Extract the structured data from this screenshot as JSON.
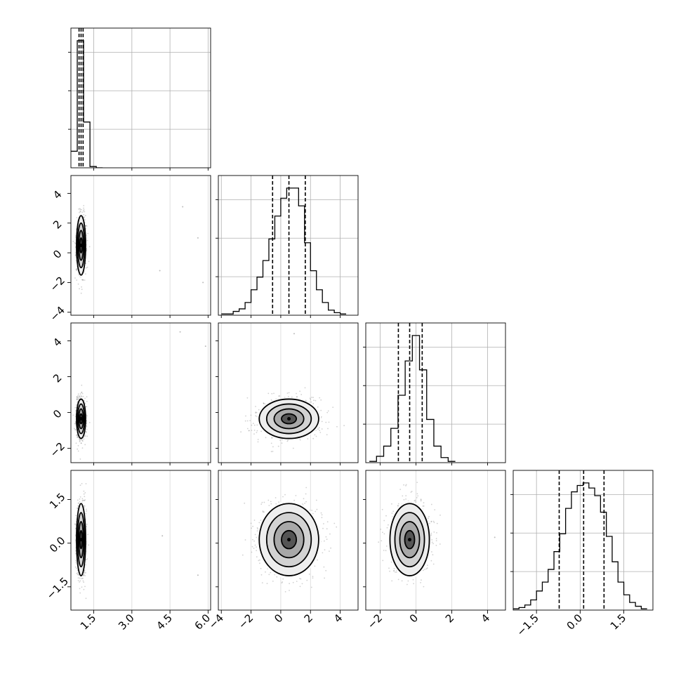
{
  "chart_data": {
    "type": "corner",
    "n_params": 4,
    "axes": [
      {
        "param": 0,
        "range": [
          0.6,
          6.1
        ],
        "ticks": [
          1.5,
          3.0,
          4.5,
          6.0
        ],
        "tick_labels": [
          "1.5",
          "3.0",
          "4.5",
          "6.0"
        ]
      },
      {
        "param": 1,
        "range": [
          -4.2,
          5.2
        ],
        "ticks": [
          -4,
          -2,
          0,
          2,
          4
        ],
        "tick_labels": [
          "−4",
          "−2",
          "0",
          "2",
          "4"
        ]
      },
      {
        "param": 2,
        "range": [
          -2.8,
          5.0
        ],
        "ticks": [
          -2,
          0,
          2,
          4
        ],
        "tick_labels": [
          "−2",
          "0",
          "2",
          "4"
        ]
      },
      {
        "param": 3,
        "range": [
          -2.3,
          2.5
        ],
        "ticks": [
          -1.5,
          0.0,
          1.5
        ],
        "tick_labels": [
          "−1.5",
          "0.0",
          "1.5"
        ]
      }
    ],
    "histograms": [
      {
        "param": 0,
        "bin_edges": [
          0.6,
          0.85,
          1.1,
          1.35,
          1.6,
          1.85
        ],
        "counts": [
          0.13,
          1.0,
          0.36,
          0.01,
          0.0
        ],
        "quantiles": [
          0.92,
          1.0,
          1.08
        ]
      },
      {
        "param": 1,
        "bin_edges": [
          -4.0,
          -3.6,
          -3.2,
          -2.8,
          -2.4,
          -2.0,
          -1.6,
          -1.2,
          -0.8,
          -0.4,
          0.0,
          0.4,
          0.8,
          1.2,
          1.6,
          2.0,
          2.4,
          2.8,
          3.2,
          3.6,
          4.0,
          4.4
        ],
        "counts": [
          0.01,
          0.01,
          0.03,
          0.05,
          0.1,
          0.2,
          0.3,
          0.43,
          0.6,
          0.78,
          0.92,
          1.0,
          1.0,
          0.86,
          0.57,
          0.35,
          0.2,
          0.1,
          0.04,
          0.02,
          0.01
        ],
        "quantiles": [
          -0.55,
          0.55,
          1.65
        ]
      },
      {
        "param": 2,
        "bin_edges": [
          -2.6,
          -2.2,
          -1.8,
          -1.4,
          -1.0,
          -0.6,
          -0.2,
          0.2,
          0.6,
          1.0,
          1.4,
          1.8,
          2.2
        ],
        "counts": [
          0.01,
          0.05,
          0.13,
          0.27,
          0.53,
          0.8,
          1.0,
          0.73,
          0.34,
          0.13,
          0.04,
          0.01
        ],
        "quantiles": [
          -0.98,
          -0.35,
          0.35
        ]
      },
      {
        "param": 3,
        "bin_edges": [
          -2.3,
          -2.1,
          -1.9,
          -1.7,
          -1.5,
          -1.3,
          -1.1,
          -0.9,
          -0.7,
          -0.5,
          -0.3,
          -0.1,
          0.1,
          0.3,
          0.5,
          0.7,
          0.9,
          1.1,
          1.3,
          1.5,
          1.7,
          1.9,
          2.1,
          2.3
        ],
        "counts": [
          0.01,
          0.02,
          0.04,
          0.08,
          0.15,
          0.22,
          0.32,
          0.46,
          0.6,
          0.8,
          0.93,
          0.98,
          1.0,
          0.96,
          0.9,
          0.77,
          0.58,
          0.38,
          0.22,
          0.12,
          0.06,
          0.03,
          0.01
        ],
        "quantiles": [
          -0.72,
          0.12,
          0.82
        ]
      }
    ],
    "contours_2d": [
      {
        "x_param": 0,
        "y_param": 1,
        "center": [
          1.0,
          0.5
        ],
        "sigma": [
          0.09,
          1.0
        ]
      },
      {
        "x_param": 0,
        "y_param": 2,
        "center": [
          1.0,
          -0.35
        ],
        "sigma": [
          0.09,
          0.55
        ]
      },
      {
        "x_param": 1,
        "y_param": 2,
        "center": [
          0.55,
          -0.35
        ],
        "sigma": [
          1.0,
          0.55
        ]
      },
      {
        "x_param": 0,
        "y_param": 3,
        "center": [
          1.0,
          0.12
        ],
        "sigma": [
          0.09,
          0.62
        ]
      },
      {
        "x_param": 1,
        "y_param": 3,
        "center": [
          0.55,
          0.12
        ],
        "sigma": [
          1.0,
          0.62
        ]
      },
      {
        "x_param": 2,
        "y_param": 3,
        "center": [
          -0.35,
          0.12
        ],
        "sigma": [
          0.55,
          0.62
        ]
      }
    ],
    "contour_levels_sigma": [
      0.5,
      1.0,
      1.5,
      2.0
    ],
    "outliers": [
      {
        "x_param": 0,
        "y_param": 1,
        "x": 5.0,
        "y": 3.1
      },
      {
        "x_param": 0,
        "y_param": 1,
        "x": 5.6,
        "y": 1.0
      },
      {
        "x_param": 0,
        "y_param": 1,
        "x": 4.1,
        "y": -1.2
      },
      {
        "x_param": 0,
        "y_param": 1,
        "x": 5.8,
        "y": -2.0
      },
      {
        "x_param": 0,
        "y_param": 2,
        "x": 4.9,
        "y": 4.5
      },
      {
        "x_param": 0,
        "y_param": 2,
        "x": 5.9,
        "y": 3.7
      },
      {
        "x_param": 0,
        "y_param": 3,
        "x": 4.2,
        "y": 0.25
      },
      {
        "x_param": 0,
        "y_param": 3,
        "x": 5.6,
        "y": -1.1
      },
      {
        "x_param": 1,
        "y_param": 2,
        "x": 0.9,
        "y": 4.4
      },
      {
        "x_param": 2,
        "y_param": 3,
        "x": 4.4,
        "y": 0.2
      }
    ],
    "grid": true,
    "colors": {
      "line": "#000000",
      "grid": "#b0b0b0",
      "points": "#7a7a7a"
    }
  }
}
